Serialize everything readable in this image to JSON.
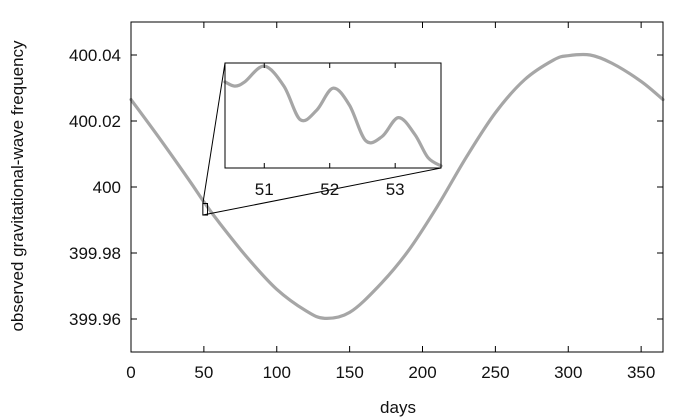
{
  "chart_data": {
    "type": "line",
    "xlabel": "days",
    "ylabel": "observed gravitational-wave frequency",
    "xlim": [
      0,
      365
    ],
    "ylim": [
      399.95,
      400.05
    ],
    "x_ticks": [
      0,
      50,
      100,
      150,
      200,
      250,
      300,
      350
    ],
    "y_ticks": [
      399.96,
      399.98,
      400,
      400.02,
      400.04
    ],
    "y_tick_labels": [
      "399.96",
      "399.98",
      "400",
      "400.02",
      "400.04"
    ],
    "series": [
      {
        "color": "#a6a6a6",
        "x": [
          0,
          20,
          40,
          50,
          60,
          80,
          100,
          120,
          133,
          150,
          170,
          190,
          210,
          230,
          250,
          270,
          290,
          300,
          315,
          330,
          350,
          365
        ],
        "y": [
          400.0265,
          400.0145,
          400.002,
          399.9955,
          399.9895,
          399.9785,
          399.969,
          399.9625,
          399.9602,
          399.962,
          399.97,
          399.9805,
          399.994,
          400.009,
          400.0225,
          400.0325,
          400.0385,
          400.0398,
          400.04,
          400.0375,
          400.032,
          400.0265
        ]
      }
    ],
    "inset": {
      "xlim": [
        50.4,
        53.7
      ],
      "x_ticks": [
        51,
        52,
        53
      ],
      "zoom_marker": {
        "x_range": [
          49.3,
          52.5
        ],
        "y_range": [
          399.9915,
          399.995
        ]
      },
      "x": [
        50.4,
        50.55,
        50.7,
        51.0,
        51.3,
        51.55,
        51.8,
        52.05,
        52.3,
        52.55,
        52.8,
        53.05,
        53.3,
        53.5,
        53.7
      ],
      "y": [
        0.82,
        0.78,
        0.82,
        0.97,
        0.78,
        0.46,
        0.55,
        0.76,
        0.6,
        0.26,
        0.3,
        0.48,
        0.32,
        0.1,
        0.02
      ]
    }
  }
}
